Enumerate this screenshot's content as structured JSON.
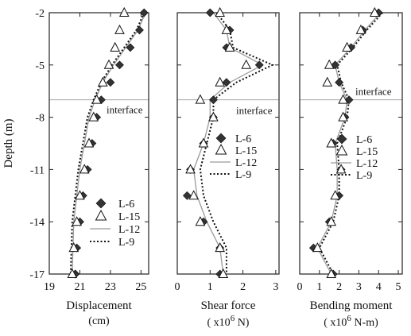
{
  "chart_data": [
    {
      "type": "line",
      "ylabel": "Depth (m)",
      "xlabel": "Displacement",
      "xunit": "(cm)",
      "xlim": [
        19,
        25.5
      ],
      "ylim": [
        -17,
        -2
      ],
      "xticks": [
        19,
        21,
        23,
        25
      ],
      "yticks": [
        -2,
        -5,
        -8,
        -11,
        -14,
        -17
      ],
      "interface_depth": -7,
      "interface_label": "interface",
      "legend": {
        "position": "bottom-right",
        "entries": [
          "L-6",
          "L-15",
          "L-12",
          "L-9"
        ]
      },
      "series": [
        {
          "name": "L-6",
          "marker": "diamond",
          "x": [
            25.2,
            24.9,
            24.3,
            23.6,
            23.0,
            22.4,
            22.1,
            21.8,
            21.5,
            21.2,
            21.0,
            20.8,
            20.7,
            20.7,
            20.7
          ],
          "y": [
            -2,
            -3,
            -4,
            -5,
            -6,
            -7,
            -8,
            -9.5,
            -11,
            -12.5,
            -14,
            -15.5,
            -17,
            -17,
            -17
          ]
        },
        {
          "name": "L-15",
          "marker": "triangle",
          "x": [
            23.9,
            23.6,
            23.3,
            22.9,
            22.5,
            22.1,
            21.9,
            21.6,
            21.3,
            21.0,
            20.8,
            20.6,
            20.5
          ],
          "y": [
            -2,
            -3,
            -4,
            -5,
            -6,
            -7,
            -8,
            -9.5,
            -11,
            -12.5,
            -14,
            -15.5,
            -17
          ]
        },
        {
          "name": "L-12",
          "style": "solid",
          "x": [
            25.3,
            24.8,
            24.0,
            23.2,
            22.5,
            22.0,
            21.6,
            21.3,
            21.0,
            20.8,
            20.6,
            20.5
          ],
          "y": [
            -2,
            -3,
            -4,
            -5,
            -6,
            -7,
            -8,
            -9.5,
            -11,
            -12.5,
            -14,
            -17
          ]
        },
        {
          "name": "L-9",
          "style": "dotted",
          "x": [
            25.2,
            24.7,
            23.9,
            23.1,
            22.4,
            21.9,
            21.5,
            21.2,
            20.9,
            20.7,
            20.5,
            20.4
          ],
          "y": [
            -2,
            -3,
            -4,
            -5,
            -6,
            -7,
            -8,
            -9.5,
            -11,
            -12.5,
            -14,
            -17
          ]
        }
      ]
    },
    {
      "type": "line",
      "xlabel": "Shear force",
      "xunit_prefix": "( x10",
      "xunit_exp": "6",
      "xunit_suffix": " N)",
      "xlim": [
        0,
        3.1
      ],
      "ylim": [
        -17,
        -2
      ],
      "xticks": [
        0,
        1,
        2,
        3
      ],
      "interface_depth": -7,
      "interface_label": "interface",
      "legend": {
        "position": "center-right",
        "entries": [
          "L-6",
          "L-15",
          "L-12",
          "L-9"
        ]
      },
      "series": [
        {
          "name": "L-6",
          "marker": "diamond",
          "x": [
            1.0,
            1.6,
            1.5,
            2.5,
            1.5,
            1.1,
            1.1,
            0.8,
            0.4,
            0.3,
            0.8,
            1.3,
            1.3
          ],
          "y": [
            -2,
            -3,
            -4,
            -5,
            -6,
            -7,
            -8,
            -9.5,
            -11,
            -12.5,
            -14,
            -15.5,
            -17
          ]
        },
        {
          "name": "L-15",
          "marker": "triangle",
          "x": [
            1.3,
            1.5,
            1.6,
            2.1,
            1.3,
            0.7,
            1.1,
            0.8,
            0.4,
            0.5,
            0.7,
            1.3,
            1.4
          ],
          "y": [
            -2,
            -3,
            -4,
            -5,
            -6,
            -7,
            -8,
            -9.5,
            -11,
            -12.5,
            -14,
            -15.5,
            -17
          ]
        },
        {
          "name": "L-12",
          "style": "solid",
          "x": [
            1.1,
            1.5,
            1.6,
            2.6,
            1.6,
            1.0,
            1.0,
            0.8,
            0.5,
            0.6,
            0.9,
            1.3,
            1.4
          ],
          "y": [
            -2,
            -3,
            -4,
            -5,
            -6,
            -7,
            -8,
            -9.5,
            -11,
            -12.5,
            -14,
            -15.5,
            -17
          ]
        },
        {
          "name": "L-9",
          "style": "dotted",
          "x": [
            1.2,
            1.6,
            1.7,
            2.9,
            1.8,
            1.1,
            1.1,
            0.9,
            0.7,
            0.8,
            1.1,
            1.5,
            1.5
          ],
          "y": [
            -2,
            -3,
            -4,
            -5,
            -6,
            -7,
            -8,
            -9.5,
            -11,
            -12.5,
            -14,
            -15.5,
            -17
          ]
        }
      ]
    },
    {
      "type": "line",
      "xlabel": "Bending moment",
      "xunit_prefix": "( x10",
      "xunit_exp": "6",
      "xunit_suffix": " N-m)",
      "xlim": [
        0,
        5.2
      ],
      "ylim": [
        -17,
        -2
      ],
      "xticks": [
        0,
        1,
        2,
        3,
        4,
        5
      ],
      "interface_depth": -7,
      "interface_label": "interface",
      "legend": {
        "position": "center-right",
        "entries": [
          "L-6",
          "L-15",
          "L-12",
          "L-9"
        ]
      },
      "series": [
        {
          "name": "L-6",
          "marker": "diamond",
          "x": [
            4.0,
            3.2,
            2.6,
            1.8,
            2.0,
            2.5,
            2.3,
            1.7,
            2.1,
            2.0,
            1.5,
            0.7,
            1.7
          ],
          "y": [
            -2,
            -3,
            -4,
            -5,
            -6,
            -7,
            -8,
            -9.5,
            -11,
            -12.5,
            -14,
            -15.5,
            -17
          ]
        },
        {
          "name": "L-15",
          "marker": "triangle",
          "x": [
            3.8,
            3.1,
            2.4,
            1.5,
            1.4,
            2.2,
            2.2,
            1.6,
            2.1,
            1.8,
            1.6,
            0.9,
            1.6
          ],
          "y": [
            -2,
            -3,
            -4,
            -5,
            -6,
            -7,
            -8,
            -9.5,
            -11,
            -12.5,
            -14,
            -15.5,
            -17
          ]
        },
        {
          "name": "L-12",
          "style": "solid",
          "x": [
            4.1,
            3.3,
            2.6,
            1.8,
            2.0,
            2.4,
            2.3,
            1.8,
            1.9,
            1.9,
            1.6,
            0.9,
            1.6
          ],
          "y": [
            -2,
            -3,
            -4,
            -5,
            -6,
            -7,
            -8,
            -9.5,
            -11,
            -12.5,
            -14,
            -15.5,
            -17
          ]
        },
        {
          "name": "L-9",
          "style": "dotted",
          "x": [
            4.2,
            3.4,
            2.7,
            1.9,
            2.1,
            2.5,
            2.4,
            1.9,
            2.0,
            2.0,
            1.7,
            1.0,
            1.7
          ],
          "y": [
            -2,
            -3,
            -4,
            -5,
            -6,
            -7,
            -8,
            -9.5,
            -11,
            -12.5,
            -14,
            -15.5,
            -17
          ]
        }
      ]
    }
  ]
}
